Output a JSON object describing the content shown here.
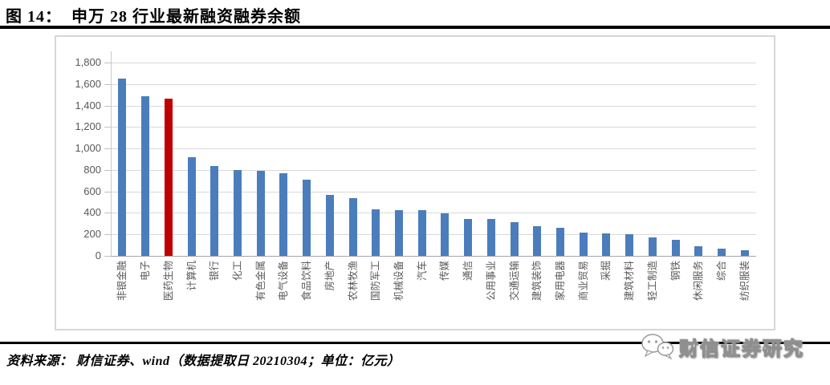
{
  "header": {
    "figure_label": "图 14：",
    "title": "申万 28 行业最新融资融券余额"
  },
  "chart_data": {
    "type": "bar",
    "title": "申万 28 行业最新融资融券余额",
    "unit": "亿元",
    "categories": [
      "非银金融",
      "电子",
      "医药生物",
      "计算机",
      "银行",
      "化工",
      "有色金属",
      "电气设备",
      "食品饮料",
      "房地产",
      "农林牧渔",
      "国防军工",
      "机械设备",
      "汽车",
      "传媒",
      "通信",
      "公用事业",
      "交通运输",
      "建筑装饰",
      "家用电器",
      "商业贸易",
      "采掘",
      "建筑材料",
      "轻工制造",
      "钢铁",
      "休闲服务",
      "综合",
      "纺织服装"
    ],
    "values": [
      1650,
      1490,
      1465,
      915,
      835,
      800,
      790,
      770,
      710,
      570,
      535,
      430,
      425,
      425,
      395,
      340,
      340,
      315,
      275,
      260,
      215,
      210,
      200,
      170,
      150,
      90,
      70,
      50
    ],
    "highlight_index": 2,
    "bar_color": "#4b7dbc",
    "highlight_color": "#c00000",
    "gridline_color": "#d9d9d9",
    "axis_label_color": "#595959",
    "ylim": [
      0,
      1800
    ],
    "ytick_step": 200,
    "ytick_labels": [
      "0",
      "200",
      "400",
      "600",
      "800",
      "1,000",
      "1,200",
      "1,400",
      "1,600",
      "1,800"
    ],
    "grid": true,
    "legend": "none"
  },
  "footer": {
    "source": "资料来源：  财信证券、wind（数据提取日 20210304；单位：亿元）"
  },
  "watermark": {
    "text": "财信证券研究",
    "icon": "wechat-icon"
  }
}
